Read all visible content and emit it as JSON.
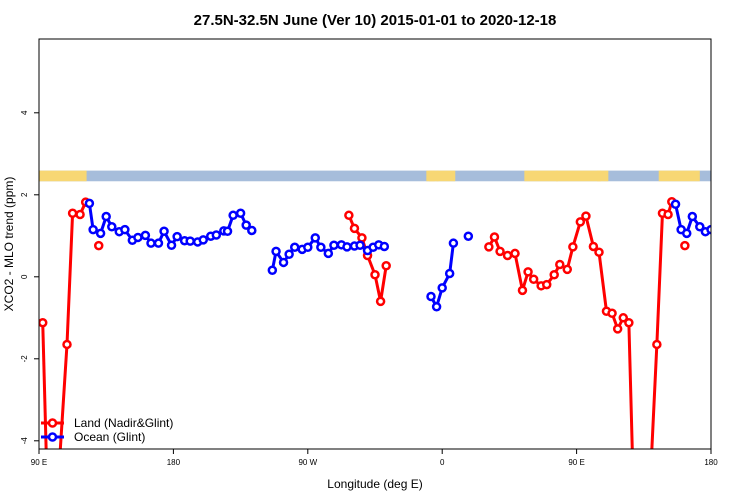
{
  "chart_data": {
    "type": "line",
    "title": "27.5N-32.5N June (Ver 10)   2015-01-01 to 2020-12-18",
    "xlabel": "Longitude (deg E)",
    "ylabel": "XCO2 - MLO trend (ppm)",
    "xlim": [
      90,
      450
    ],
    "ylim": [
      -4.2,
      5.8
    ],
    "xtick_values": [
      90,
      162,
      234,
      306,
      378,
      450
    ],
    "xtick_labels": [
      "90 E",
      "180",
      "90 W",
      "0",
      "90 E",
      "180"
    ],
    "ytick_values": [
      -4,
      -2,
      0,
      2,
      4
    ],
    "ytick_labels": [
      "-4",
      "-2",
      "0",
      "2",
      "4"
    ],
    "grid": false,
    "legend_position": "bottom-left",
    "surface_strip": {
      "y_range": [
        2.33,
        2.59
      ],
      "land_color": "#f7d774",
      "ocean_color": "#a6bddb",
      "land_segments": [
        [
          90,
          115.5
        ],
        [
          297.5,
          313
        ],
        [
          303,
          304
        ],
        [
          299,
          302
        ],
        [
          350,
          395
        ],
        [
          367,
          368
        ],
        [
          389,
          391
        ],
        [
          422,
          444
        ]
      ]
    },
    "series": [
      {
        "name": "Land (Nadir&Glint)",
        "color": "#ff0000",
        "segments": [
          [
            [
              92,
              -1.12
            ],
            [
              94,
              -4.5
            ]
          ],
          [
            [
              101,
              -4.5
            ],
            [
              105,
              -1.65
            ],
            [
              108,
              1.55
            ],
            [
              112,
              1.52
            ],
            [
              115,
              1.82
            ]
          ],
          [
            [
              122,
              0.76
            ]
          ],
          [
            [
              256,
              1.5
            ],
            [
              259,
              1.18
            ],
            [
              263,
              0.95
            ],
            [
              266,
              0.52
            ],
            [
              270,
              0.05
            ],
            [
              273,
              -0.6
            ],
            [
              276,
              0.27
            ]
          ],
          [
            [
              331,
              0.73
            ],
            [
              334,
              0.97
            ],
            [
              337,
              0.62
            ],
            [
              341,
              0.52
            ],
            [
              345,
              0.57
            ],
            [
              349,
              -0.33
            ],
            [
              352,
              0.12
            ],
            [
              355,
              -0.06
            ],
            [
              359,
              -0.22
            ],
            [
              362,
              -0.19
            ],
            [
              366,
              0.05
            ],
            [
              369,
              0.3
            ],
            [
              373,
              0.18
            ],
            [
              376,
              0.73
            ],
            [
              380,
              1.34
            ],
            [
              383,
              1.48
            ],
            [
              387,
              0.74
            ],
            [
              390,
              0.6
            ],
            [
              394,
              -0.84
            ],
            [
              397,
              -0.89
            ],
            [
              400,
              -1.27
            ],
            [
              403,
              -1.0
            ],
            [
              406,
              -1.12
            ],
            [
              408,
              -4.5
            ]
          ],
          [
            [
              418,
              -4.5
            ],
            [
              421,
              -1.65
            ],
            [
              424,
              1.55
            ],
            [
              427,
              1.52
            ],
            [
              429,
              1.83
            ]
          ],
          [
            [
              436,
              0.76
            ]
          ]
        ]
      },
      {
        "name": "Ocean (Glint)",
        "color": "#0000ff",
        "segments": [
          [
            [
              117,
              1.79
            ],
            [
              119,
              1.15
            ],
            [
              123,
              1.06
            ],
            [
              126,
              1.47
            ],
            [
              129,
              1.22
            ],
            [
              133,
              1.1
            ],
            [
              136,
              1.15
            ],
            [
              140,
              0.89
            ],
            [
              143,
              0.96
            ],
            [
              147,
              1.01
            ],
            [
              150,
              0.82
            ],
            [
              154,
              0.82
            ],
            [
              157,
              1.11
            ],
            [
              161,
              0.77
            ],
            [
              164,
              0.98
            ],
            [
              168,
              0.88
            ],
            [
              171,
              0.87
            ],
            [
              175,
              0.85
            ],
            [
              178,
              0.9
            ],
            [
              182,
              0.99
            ],
            [
              185,
              1.02
            ],
            [
              189,
              1.12
            ],
            [
              191,
              1.11
            ],
            [
              194,
              1.5
            ],
            [
              198,
              1.55
            ],
            [
              201,
              1.26
            ],
            [
              204,
              1.13
            ]
          ],
          [
            [
              215,
              0.16
            ],
            [
              217,
              0.62
            ],
            [
              221,
              0.35
            ],
            [
              224,
              0.55
            ],
            [
              227,
              0.72
            ],
            [
              231,
              0.67
            ],
            [
              234,
              0.72
            ],
            [
              238,
              0.95
            ],
            [
              241,
              0.72
            ],
            [
              245,
              0.57
            ],
            [
              248,
              0.77
            ],
            [
              252,
              0.78
            ],
            [
              255,
              0.73
            ],
            [
              259,
              0.75
            ],
            [
              262,
              0.77
            ],
            [
              266,
              0.64
            ],
            [
              269,
              0.72
            ],
            [
              272,
              0.78
            ],
            [
              275,
              0.74
            ]
          ],
          [
            [
              300,
              -0.48
            ],
            [
              303,
              -0.73
            ],
            [
              306,
              -0.27
            ],
            [
              310,
              0.08
            ],
            [
              312,
              0.82
            ]
          ],
          [
            [
              320,
              0.99
            ]
          ],
          [
            [
              431,
              1.77
            ],
            [
              434,
              1.15
            ],
            [
              437,
              1.06
            ],
            [
              440,
              1.47
            ],
            [
              444,
              1.22
            ],
            [
              447,
              1.1
            ],
            [
              450,
              1.15
            ]
          ]
        ]
      }
    ]
  }
}
